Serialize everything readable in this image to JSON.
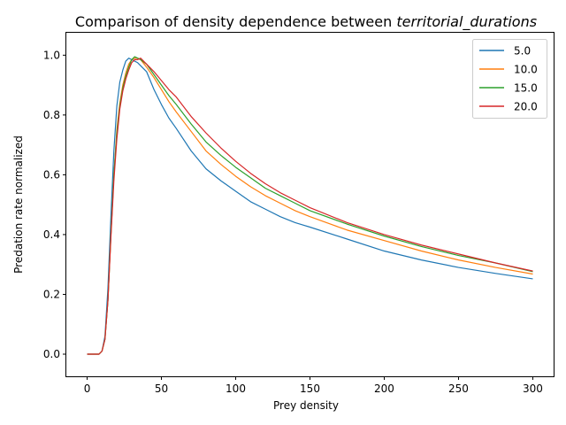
{
  "chart_data": {
    "type": "line",
    "title_prefix": "Comparison of density dependence between ",
    "title_italic": "territorial_durations",
    "xlabel": "Prey density",
    "ylabel": "Predation rate normalized",
    "xlim": [
      -14,
      314
    ],
    "ylim": [
      -0.074,
      1.075
    ],
    "xticks": [
      0,
      50,
      100,
      150,
      200,
      250,
      300
    ],
    "yticks": [
      0.0,
      0.2,
      0.4,
      0.6,
      0.8,
      1.0
    ],
    "ytick_labels": [
      "0.0",
      "0.2",
      "0.4",
      "0.6",
      "0.8",
      "1.0"
    ],
    "grid": false,
    "legend_position": "top-right",
    "series": [
      {
        "name": "5.0",
        "color": "#1f77b4",
        "points": [
          [
            0,
            0
          ],
          [
            8,
            0
          ],
          [
            10,
            0.01
          ],
          [
            12,
            0.06
          ],
          [
            14,
            0.22
          ],
          [
            16,
            0.46
          ],
          [
            18,
            0.68
          ],
          [
            20,
            0.83
          ],
          [
            22,
            0.91
          ],
          [
            24,
            0.95
          ],
          [
            26,
            0.98
          ],
          [
            28,
            0.99
          ],
          [
            30,
            0.985
          ],
          [
            32,
            0.98
          ],
          [
            34,
            0.975
          ],
          [
            36,
            0.965
          ],
          [
            40,
            0.945
          ],
          [
            45,
            0.885
          ],
          [
            50,
            0.835
          ],
          [
            55,
            0.79
          ],
          [
            60,
            0.755
          ],
          [
            70,
            0.68
          ],
          [
            80,
            0.62
          ],
          [
            90,
            0.58
          ],
          [
            100,
            0.545
          ],
          [
            110,
            0.51
          ],
          [
            120,
            0.485
          ],
          [
            130,
            0.46
          ],
          [
            140,
            0.44
          ],
          [
            150,
            0.425
          ],
          [
            175,
            0.385
          ],
          [
            200,
            0.345
          ],
          [
            225,
            0.315
          ],
          [
            250,
            0.29
          ],
          [
            275,
            0.27
          ],
          [
            300,
            0.252
          ]
        ]
      },
      {
        "name": "10.0",
        "color": "#ff7f0e",
        "points": [
          [
            0,
            0
          ],
          [
            8,
            0
          ],
          [
            10,
            0.01
          ],
          [
            12,
            0.05
          ],
          [
            14,
            0.18
          ],
          [
            16,
            0.4
          ],
          [
            18,
            0.6
          ],
          [
            20,
            0.75
          ],
          [
            22,
            0.84
          ],
          [
            24,
            0.9
          ],
          [
            26,
            0.94
          ],
          [
            28,
            0.97
          ],
          [
            30,
            0.985
          ],
          [
            32,
            0.99
          ],
          [
            34,
            0.99
          ],
          [
            36,
            0.985
          ],
          [
            40,
            0.96
          ],
          [
            45,
            0.925
          ],
          [
            50,
            0.885
          ],
          [
            55,
            0.845
          ],
          [
            60,
            0.81
          ],
          [
            70,
            0.745
          ],
          [
            80,
            0.68
          ],
          [
            90,
            0.635
          ],
          [
            100,
            0.595
          ],
          [
            110,
            0.56
          ],
          [
            120,
            0.53
          ],
          [
            130,
            0.505
          ],
          [
            140,
            0.48
          ],
          [
            150,
            0.46
          ],
          [
            175,
            0.415
          ],
          [
            200,
            0.38
          ],
          [
            225,
            0.345
          ],
          [
            250,
            0.315
          ],
          [
            275,
            0.29
          ],
          [
            300,
            0.268
          ]
        ]
      },
      {
        "name": "15.0",
        "color": "#2ca02c",
        "points": [
          [
            0,
            0
          ],
          [
            8,
            0
          ],
          [
            10,
            0.01
          ],
          [
            12,
            0.05
          ],
          [
            14,
            0.18
          ],
          [
            16,
            0.4
          ],
          [
            18,
            0.6
          ],
          [
            20,
            0.74
          ],
          [
            22,
            0.83
          ],
          [
            24,
            0.89
          ],
          [
            26,
            0.93
          ],
          [
            28,
            0.96
          ],
          [
            30,
            0.985
          ],
          [
            32,
            0.995
          ],
          [
            34,
            0.99
          ],
          [
            36,
            0.985
          ],
          [
            40,
            0.97
          ],
          [
            45,
            0.935
          ],
          [
            50,
            0.9
          ],
          [
            55,
            0.865
          ],
          [
            60,
            0.835
          ],
          [
            70,
            0.77
          ],
          [
            80,
            0.71
          ],
          [
            90,
            0.665
          ],
          [
            100,
            0.625
          ],
          [
            110,
            0.59
          ],
          [
            120,
            0.555
          ],
          [
            130,
            0.53
          ],
          [
            140,
            0.505
          ],
          [
            150,
            0.48
          ],
          [
            175,
            0.435
          ],
          [
            200,
            0.395
          ],
          [
            225,
            0.36
          ],
          [
            250,
            0.33
          ],
          [
            275,
            0.305
          ],
          [
            300,
            0.276
          ]
        ]
      },
      {
        "name": "20.0",
        "color": "#d62728",
        "points": [
          [
            0,
            0
          ],
          [
            8,
            0
          ],
          [
            10,
            0.01
          ],
          [
            12,
            0.05
          ],
          [
            14,
            0.18
          ],
          [
            16,
            0.39
          ],
          [
            18,
            0.58
          ],
          [
            20,
            0.72
          ],
          [
            22,
            0.82
          ],
          [
            24,
            0.88
          ],
          [
            26,
            0.92
          ],
          [
            28,
            0.95
          ],
          [
            30,
            0.975
          ],
          [
            32,
            0.985
          ],
          [
            34,
            0.985
          ],
          [
            36,
            0.99
          ],
          [
            40,
            0.97
          ],
          [
            45,
            0.945
          ],
          [
            50,
            0.915
          ],
          [
            55,
            0.885
          ],
          [
            60,
            0.86
          ],
          [
            70,
            0.795
          ],
          [
            80,
            0.74
          ],
          [
            90,
            0.69
          ],
          [
            100,
            0.645
          ],
          [
            110,
            0.605
          ],
          [
            120,
            0.57
          ],
          [
            130,
            0.54
          ],
          [
            140,
            0.515
          ],
          [
            150,
            0.49
          ],
          [
            175,
            0.44
          ],
          [
            200,
            0.4
          ],
          [
            225,
            0.365
          ],
          [
            250,
            0.335
          ],
          [
            275,
            0.305
          ],
          [
            300,
            0.278
          ]
        ]
      }
    ]
  }
}
